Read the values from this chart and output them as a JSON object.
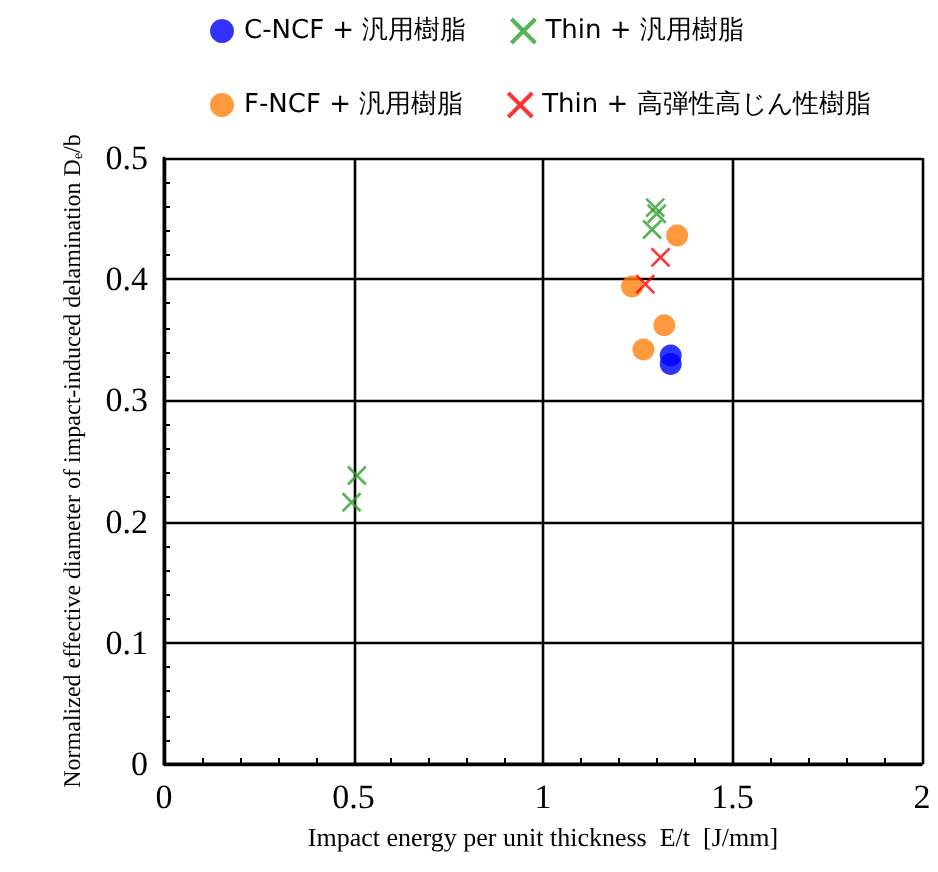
{
  "chart_data": {
    "type": "scatter",
    "xlabel": "Impact energy per unit thickness  E/t  [J/mm]",
    "ylabel": "Normalized effective diameter of impact-induced delamination Dₑ/b",
    "series": [
      {
        "name": "C-NCF + 汎用樹脂",
        "color": "#0000ff",
        "marker": "circle",
        "x": [
          1.337,
          1.337
        ],
        "values": [
          0.337,
          0.33
        ]
      },
      {
        "name": "Thin + 汎用樹脂",
        "color": "#2ca02c",
        "marker": "cross",
        "x": [
          1.296,
          1.3,
          1.288,
          0.509,
          0.495
        ],
        "values": [
          0.459,
          0.454,
          0.441,
          0.238,
          0.216
        ]
      },
      {
        "name": "F-NCF + 汎用樹脂",
        "color": "#ff7f0e",
        "marker": "circle",
        "x": [
          1.354,
          1.235,
          1.32,
          1.265
        ],
        "values": [
          0.436,
          0.394,
          0.362,
          0.342
        ]
      },
      {
        "name": "Thin + 高弾性高じん性樹脂",
        "color": "#ff0000",
        "marker": "cross",
        "x": [
          1.31,
          1.27
        ],
        "values": [
          0.418,
          0.396
        ]
      }
    ],
    "xlim": [
      0,
      2
    ],
    "xticks": [
      0,
      0.5,
      1,
      1.5,
      2
    ],
    "ylim": [
      0,
      0.5
    ],
    "yticks": [
      0,
      0.1,
      0.2,
      0.3,
      0.4,
      0.5
    ],
    "grid": true,
    "legend": "top"
  }
}
